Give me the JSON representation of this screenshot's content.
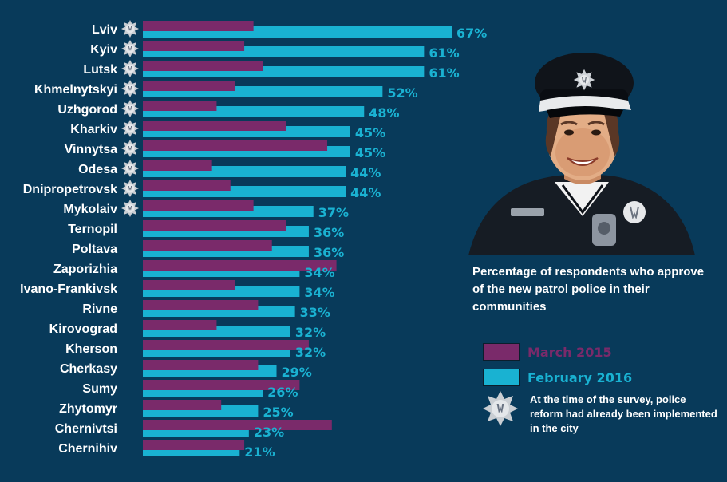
{
  "chart_data": {
    "type": "bar",
    "orientation": "horizontal",
    "categories": [
      "Lviv",
      "Kyiv",
      "Lutsk",
      "Khmelnytskyi",
      "Uzhgorod",
      "Kharkiv",
      "Vinnytsa",
      "Odesa",
      "Dnipropetrovsk",
      "Mykolaiv",
      "Ternopil",
      "Poltava",
      "Zaporizhia",
      "Ivano-Frankivsk",
      "Rivne",
      "Kirovograd",
      "Kherson",
      "Cherkasy",
      "Sumy",
      "Zhytomyr",
      "Chernivtsi",
      "Chernihiv"
    ],
    "series": [
      {
        "name": "March 2015",
        "color": "#7a2a6a",
        "values": [
          24,
          22,
          26,
          20,
          16,
          31,
          40,
          15,
          19,
          24,
          31,
          28,
          42,
          20,
          25,
          16,
          36,
          25,
          34,
          17,
          41,
          22
        ]
      },
      {
        "name": "February 2016",
        "color": "#19b2d2",
        "values": [
          67,
          61,
          61,
          52,
          48,
          45,
          45,
          44,
          44,
          37,
          36,
          36,
          34,
          34,
          33,
          32,
          32,
          29,
          26,
          25,
          23,
          21
        ]
      }
    ],
    "value_labels": [
      "67%",
      "61%",
      "61%",
      "52%",
      "48%",
      "45%",
      "45%",
      "44%",
      "44%",
      "37%",
      "36%",
      "36%",
      "34%",
      "34%",
      "33%",
      "32%",
      "32%",
      "29%",
      "26%",
      "25%",
      "23%",
      "21%"
    ],
    "reform_implemented": [
      true,
      true,
      true,
      true,
      true,
      true,
      true,
      true,
      true,
      true,
      false,
      false,
      false,
      false,
      false,
      false,
      false,
      false,
      false,
      false,
      false,
      false
    ],
    "xlim": [
      0,
      100
    ],
    "legend_position": "right"
  },
  "caption": "Percentage of respondents who approve of the new patrol police in their communities",
  "legend": {
    "march_label": "March 2015",
    "march_color": "#7a2a6a",
    "feb_label": "February 2016",
    "feb_color": "#19b2d2",
    "badge_icon": "police-star-badge-icon",
    "badge_note": "At the time of the survey, police reform had already been implemented in the city"
  },
  "illustration": "police-officer-icon"
}
